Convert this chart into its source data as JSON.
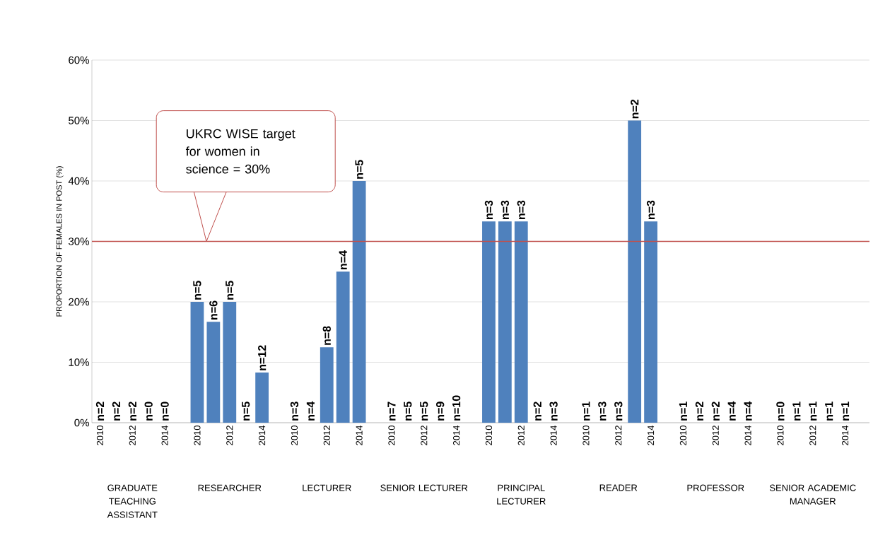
{
  "chart_data": {
    "type": "bar",
    "ylabel": "PROPORTION OF FEMALES IN POST (%)",
    "categories": [
      "2010",
      null,
      "2012",
      null,
      "2014",
      "2010",
      null,
      "2012",
      null,
      "2014",
      "2010",
      null,
      "2012",
      null,
      "2014",
      "2010",
      null,
      "2012",
      null,
      "2014",
      "2010",
      null,
      "2012",
      null,
      "2014",
      "2010",
      null,
      "2012",
      null,
      "2014",
      "2010",
      null,
      "2012",
      null,
      "2014",
      "2010",
      null,
      "2012",
      null,
      "2014"
    ],
    "values": [
      0,
      0,
      0,
      0,
      0,
      20,
      16.7,
      20,
      0,
      8.3,
      0,
      0,
      12.5,
      25,
      40,
      0,
      0,
      0,
      0,
      0,
      33.3,
      33.3,
      33.3,
      0,
      0,
      0,
      0,
      0,
      50,
      33.3,
      0,
      0,
      0,
      0,
      0,
      0,
      0,
      0,
      0,
      0
    ],
    "annotations": [
      "GRADUATE TEACHING ASSISTANT",
      "RESEARCHER",
      "LECTURER",
      "SENIOR LECTURER",
      "PRINCIPAL LECTURER",
      "READER",
      "PROFESSOR",
      "SENIOR ACADEMIC MANAGER",
      "UKRC WISE target for women in science = 30%",
      "n=2",
      "n=2",
      "n=2",
      "n=0",
      "n=0",
      "n=5",
      "n=6",
      "n=5",
      "n=5",
      "n=12",
      "n=3",
      "n=4",
      "n=8",
      "n=4",
      "n=5",
      "n=7",
      "n=5",
      "n=5",
      "n=9",
      "n=10",
      "n=3",
      "n=3",
      "n=3",
      "n=2",
      "n=3",
      "n=1",
      "n=3",
      "n=3",
      "n=2",
      "n=3",
      "n=1",
      "n=2",
      "n=2",
      "n=4",
      "n=4",
      "n=0",
      "n=1",
      "n=1",
      "n=1",
      "n=1"
    ],
    "color": "#4f81bd",
    "ylim": [
      0,
      60
    ],
    "yticks": [
      {
        "value": 0,
        "label": "0%"
      },
      {
        "value": 10,
        "label": "10%"
      },
      {
        "value": 20,
        "label": "20%"
      },
      {
        "value": 30,
        "label": "30%"
      },
      {
        "value": 40,
        "label": "40%"
      },
      {
        "value": 50,
        "label": "50%"
      },
      {
        "value": 60,
        "label": "60%"
      }
    ],
    "grid": "y",
    "ref_lines": [
      {
        "axis": "y",
        "value": 30,
        "color": "#c0504d"
      }
    ]
  }
}
